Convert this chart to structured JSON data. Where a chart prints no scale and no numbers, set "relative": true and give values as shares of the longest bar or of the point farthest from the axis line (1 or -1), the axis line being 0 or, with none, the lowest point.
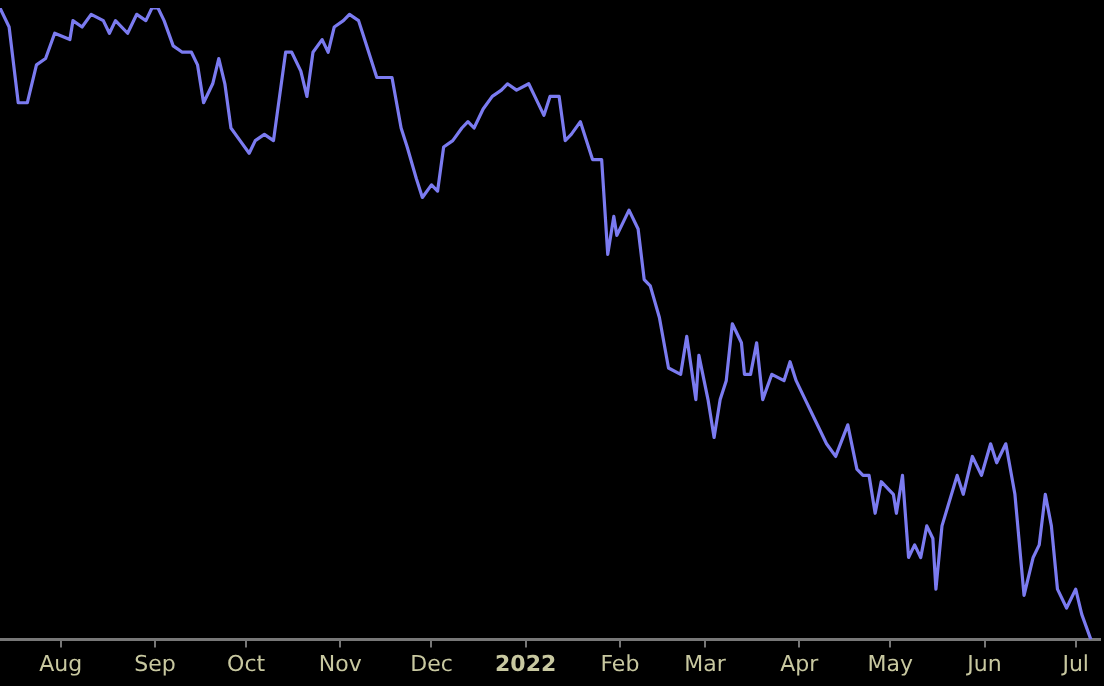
{
  "chart_data": {
    "type": "line",
    "relative": true,
    "grid": false,
    "legend": false,
    "marker": "none",
    "line_style": "solid",
    "x": [
      "2021-07-12",
      "2021-07-15",
      "2021-07-18",
      "2021-07-21",
      "2021-07-24",
      "2021-07-27",
      "2021-07-30",
      "2021-08-04",
      "2021-08-05",
      "2021-08-08",
      "2021-08-11",
      "2021-08-15",
      "2021-08-17",
      "2021-08-19",
      "2021-08-23",
      "2021-08-26",
      "2021-08-29",
      "2021-08-31",
      "2021-09-02",
      "2021-09-04",
      "2021-09-07",
      "2021-09-10",
      "2021-09-13",
      "2021-09-15",
      "2021-09-17",
      "2021-09-20",
      "2021-09-22",
      "2021-09-24",
      "2021-09-26",
      "2021-09-29",
      "2021-10-02",
      "2021-10-04",
      "2021-10-07",
      "2021-10-10",
      "2021-10-14",
      "2021-10-16",
      "2021-10-19",
      "2021-10-21",
      "2021-10-23",
      "2021-10-26",
      "2021-10-28",
      "2021-10-30",
      "2021-11-02",
      "2021-11-04",
      "2021-11-07",
      "2021-11-09",
      "2021-11-13",
      "2021-11-16",
      "2021-11-18",
      "2021-11-21",
      "2021-11-23",
      "2021-11-26",
      "2021-11-28",
      "2021-12-01",
      "2021-12-03",
      "2021-12-05",
      "2021-12-08",
      "2021-12-11",
      "2021-12-13",
      "2021-12-15",
      "2021-12-18",
      "2021-12-21",
      "2021-12-24",
      "2021-12-26",
      "2021-12-29",
      "2022-01-02",
      "2022-01-04",
      "2022-01-07",
      "2022-01-09",
      "2022-01-12",
      "2022-01-14",
      "2022-01-16",
      "2022-01-19",
      "2022-01-23",
      "2022-01-26",
      "2022-01-28",
      "2022-01-30",
      "2022-01-31",
      "2022-02-04",
      "2022-02-07",
      "2022-02-09",
      "2022-02-11",
      "2022-02-14",
      "2022-02-17",
      "2022-02-21",
      "2022-02-23",
      "2022-02-26",
      "2022-02-27",
      "2022-03-02",
      "2022-03-04",
      "2022-03-06",
      "2022-03-08",
      "2022-03-10",
      "2022-03-13",
      "2022-03-14",
      "2022-03-16",
      "2022-03-18",
      "2022-03-20",
      "2022-03-23",
      "2022-03-27",
      "2022-03-29",
      "2022-03-31",
      "2022-04-03",
      "2022-04-06",
      "2022-04-10",
      "2022-04-13",
      "2022-04-17",
      "2022-04-20",
      "2022-04-22",
      "2022-04-24",
      "2022-04-26",
      "2022-04-28",
      "2022-05-02",
      "2022-05-03",
      "2022-05-05",
      "2022-05-07",
      "2022-05-09",
      "2022-05-11",
      "2022-05-13",
      "2022-05-15",
      "2022-05-16",
      "2022-05-18",
      "2022-05-23",
      "2022-05-25",
      "2022-05-28",
      "2022-05-31",
      "2022-06-03",
      "2022-06-05",
      "2022-06-08",
      "2022-06-11",
      "2022-06-14",
      "2022-06-17",
      "2022-06-19",
      "2022-06-21",
      "2022-06-23",
      "2022-06-25",
      "2022-06-28",
      "2022-07-01",
      "2022-07-03",
      "2022-07-06"
    ],
    "series": [
      {
        "color": "#7b7bf0",
        "values": [
          1.0,
          0.97,
          0.85,
          0.85,
          0.91,
          0.92,
          0.96,
          0.95,
          0.98,
          0.97,
          0.99,
          0.98,
          0.96,
          0.98,
          0.96,
          0.99,
          0.98,
          1.0,
          1.0,
          0.98,
          0.94,
          0.93,
          0.93,
          0.91,
          0.85,
          0.88,
          0.92,
          0.88,
          0.81,
          0.79,
          0.77,
          0.79,
          0.8,
          0.79,
          0.93,
          0.93,
          0.9,
          0.86,
          0.93,
          0.95,
          0.93,
          0.97,
          0.98,
          0.99,
          0.98,
          0.95,
          0.89,
          0.89,
          0.89,
          0.81,
          0.78,
          0.73,
          0.7,
          0.72,
          0.71,
          0.78,
          0.79,
          0.81,
          0.82,
          0.81,
          0.84,
          0.86,
          0.87,
          0.88,
          0.87,
          0.88,
          0.86,
          0.83,
          0.86,
          0.86,
          0.79,
          0.8,
          0.82,
          0.76,
          0.76,
          0.61,
          0.67,
          0.64,
          0.68,
          0.65,
          0.57,
          0.56,
          0.51,
          0.43,
          0.42,
          0.48,
          0.38,
          0.45,
          0.38,
          0.32,
          0.38,
          0.41,
          0.5,
          0.47,
          0.42,
          0.42,
          0.47,
          0.38,
          0.42,
          0.41,
          0.44,
          0.41,
          0.38,
          0.35,
          0.31,
          0.29,
          0.34,
          0.27,
          0.26,
          0.26,
          0.2,
          0.25,
          0.23,
          0.2,
          0.26,
          0.13,
          0.15,
          0.13,
          0.18,
          0.16,
          0.08,
          0.18,
          0.26,
          0.23,
          0.29,
          0.26,
          0.31,
          0.28,
          0.31,
          0.23,
          0.07,
          0.13,
          0.15,
          0.23,
          0.18,
          0.08,
          0.05,
          0.08,
          0.04,
          0.0
        ]
      }
    ],
    "xlim": [
      "2021-07-12",
      "2022-07-09"
    ],
    "xticks": [
      {
        "value": "2021-08-01",
        "label": "Aug"
      },
      {
        "value": "2021-09-01",
        "label": "Sep"
      },
      {
        "value": "2021-10-01",
        "label": "Oct"
      },
      {
        "value": "2021-11-01",
        "label": "Nov"
      },
      {
        "value": "2021-12-01",
        "label": "Dec"
      },
      {
        "value": "2022-01-01",
        "label": "2022"
      },
      {
        "value": "2022-02-01",
        "label": "Feb"
      },
      {
        "value": "2022-03-01",
        "label": "Mar"
      },
      {
        "value": "2022-04-01",
        "label": "Apr"
      },
      {
        "value": "2022-05-01",
        "label": "May"
      },
      {
        "value": "2022-06-01",
        "label": "Jun"
      },
      {
        "value": "2022-07-01",
        "label": "Jul"
      }
    ]
  }
}
